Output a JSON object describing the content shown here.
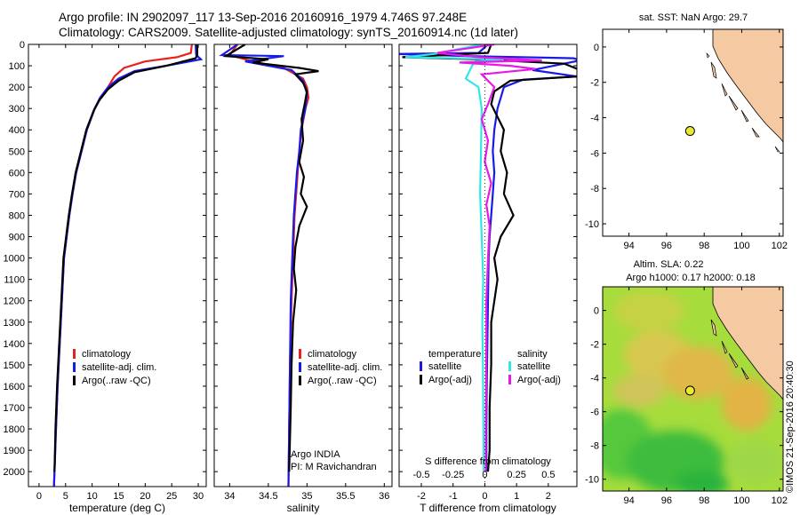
{
  "header": {
    "line1": "Argo profile: IN 2902097_117 13-Sep-2016 20160916_1979 4.746S 97.248E",
    "line2": "Climatology: CARS2009. Satellite-adjusted climatology: synTS_20160914.nc (1d later)"
  },
  "colors": {
    "climatology": "#e8231e",
    "satellite": "#1a1ae6",
    "argo": "#000000",
    "sat_salinity": "#33e6e6",
    "argo_salinity": "#e619e6",
    "land": "#f5c9a2",
    "marker": "#e8e835",
    "sla_green": "#8fd84a",
    "sla_orange": "#e8b540"
  },
  "depth_axis": {
    "ticks": [
      0,
      100,
      200,
      300,
      400,
      500,
      600,
      700,
      800,
      900,
      1000,
      1100,
      1200,
      1300,
      1400,
      1500,
      1600,
      1700,
      1800,
      1900,
      2000
    ]
  },
  "chart_data": [
    {
      "type": "line",
      "id": "temperature",
      "xlabel": "temperature (deg C)",
      "xlim": [
        -2,
        31.5
      ],
      "ylim": [
        2070,
        0
      ],
      "xticks": [
        0,
        5,
        10,
        15,
        20,
        25,
        30
      ],
      "legend": [
        "climatology",
        "satellite-adj. clim.",
        "Argo(..raw -QC)"
      ],
      "series": [
        {
          "name": "climatology",
          "color": "#e8231e",
          "points": [
            [
              28.8,
              0
            ],
            [
              28.6,
              40
            ],
            [
              26,
              60
            ],
            [
              20,
              80
            ],
            [
              16,
              110
            ],
            [
              14.2,
              150
            ],
            [
              13,
              200
            ],
            [
              11.5,
              250
            ],
            [
              10.5,
              300
            ],
            [
              9,
              400
            ],
            [
              8,
              500
            ],
            [
              7,
              600
            ],
            [
              6.3,
              700
            ],
            [
              5.7,
              800
            ],
            [
              5.2,
              900
            ],
            [
              4.7,
              1000
            ],
            [
              4.3,
              1200
            ],
            [
              3.9,
              1400
            ],
            [
              3.5,
              1600
            ],
            [
              3.2,
              1800
            ],
            [
              2.9,
              2000
            ],
            [
              2.8,
              2070
            ]
          ]
        },
        {
          "name": "satellite-adj. clim.",
          "color": "#1a1ae6",
          "points": [
            [
              29.5,
              0
            ],
            [
              29.6,
              50
            ],
            [
              30.5,
              70
            ],
            [
              25,
              95
            ],
            [
              18,
              125
            ],
            [
              15,
              160
            ],
            [
              13,
              200
            ],
            [
              11.5,
              250
            ],
            [
              10.5,
              300
            ],
            [
              9,
              400
            ],
            [
              8,
              500
            ],
            [
              7,
              600
            ],
            [
              6.3,
              700
            ],
            [
              5.7,
              800
            ],
            [
              5.2,
              900
            ],
            [
              4.7,
              1000
            ],
            [
              4.3,
              1200
            ],
            [
              3.9,
              1400
            ],
            [
              3.5,
              1600
            ],
            [
              3.2,
              1800
            ],
            [
              2.9,
              2000
            ],
            [
              2.8,
              2070
            ]
          ]
        },
        {
          "name": "Argo(..raw -QC)",
          "color": "#000000",
          "points": [
            [
              29.8,
              0
            ],
            [
              29.8,
              50
            ],
            [
              29.5,
              65
            ],
            [
              24,
              100
            ],
            [
              18,
              130
            ],
            [
              15,
              170
            ],
            [
              13,
              210
            ],
            [
              11.4,
              260
            ],
            [
              10.3,
              310
            ],
            [
              8.9,
              400
            ],
            [
              7.9,
              500
            ],
            [
              6.9,
              600
            ],
            [
              6.2,
              700
            ],
            [
              5.6,
              800
            ],
            [
              5.1,
              900
            ],
            [
              4.6,
              1000
            ],
            [
              4.2,
              1200
            ],
            [
              3.8,
              1400
            ],
            [
              3.4,
              1600
            ],
            [
              3.1,
              1800
            ],
            [
              2.9,
              2000
            ]
          ]
        }
      ]
    },
    {
      "type": "line",
      "id": "salinity",
      "xlabel": "salinity",
      "xlim": [
        33.8,
        36.1
      ],
      "ylim": [
        2070,
        0
      ],
      "xticks": [
        34,
        34.5,
        35,
        35.5,
        36
      ],
      "legend": [
        "climatology",
        "satellite-adj. clim.",
        "Argo(..raw -QC)"
      ],
      "annotation": [
        "Argo INDIA",
        "PI: M Ravichandran"
      ],
      "series": [
        {
          "name": "climatology",
          "color": "#e8231e",
          "points": [
            [
              34.1,
              0
            ],
            [
              34.0,
              50
            ],
            [
              34.3,
              80
            ],
            [
              34.7,
              110
            ],
            [
              34.95,
              160
            ],
            [
              35.0,
              200
            ],
            [
              35.02,
              250
            ],
            [
              34.98,
              300
            ],
            [
              34.93,
              400
            ],
            [
              34.9,
              500
            ],
            [
              34.88,
              600
            ],
            [
              34.86,
              700
            ],
            [
              34.84,
              800
            ],
            [
              34.82,
              1000
            ],
            [
              34.8,
              1200
            ],
            [
              34.78,
              1500
            ],
            [
              34.77,
              1800
            ],
            [
              34.76,
              2070
            ]
          ]
        },
        {
          "name": "satellite-adj. clim.",
          "color": "#1a1ae6",
          "points": [
            [
              34.1,
              0
            ],
            [
              33.9,
              50
            ],
            [
              34.7,
              55
            ],
            [
              34.2,
              80
            ],
            [
              34.8,
              120
            ],
            [
              34.95,
              170
            ],
            [
              35.0,
              230
            ],
            [
              34.98,
              300
            ],
            [
              34.92,
              400
            ],
            [
              34.9,
              500
            ],
            [
              34.87,
              600
            ],
            [
              34.85,
              700
            ],
            [
              34.83,
              800
            ],
            [
              34.81,
              1000
            ],
            [
              34.79,
              1200
            ],
            [
              34.78,
              1500
            ],
            [
              34.77,
              1800
            ],
            [
              34.76,
              2070
            ]
          ]
        },
        {
          "name": "Argo(..raw -QC)",
          "color": "#000000",
          "points": [
            [
              34.2,
              0
            ],
            [
              33.95,
              55
            ],
            [
              34.5,
              70
            ],
            [
              34.3,
              85
            ],
            [
              34.9,
              110
            ],
            [
              35.15,
              125
            ],
            [
              34.85,
              140
            ],
            [
              34.95,
              180
            ],
            [
              35.0,
              220
            ],
            [
              34.97,
              280
            ],
            [
              34.93,
              350
            ],
            [
              34.95,
              450
            ],
            [
              34.9,
              550
            ],
            [
              34.96,
              620
            ],
            [
              34.92,
              700
            ],
            [
              35.0,
              760
            ],
            [
              34.9,
              850
            ],
            [
              34.85,
              950
            ],
            [
              34.83,
              1050
            ],
            [
              34.86,
              1150
            ],
            [
              34.82,
              1300
            ],
            [
              34.8,
              1500
            ],
            [
              34.79,
              1700
            ],
            [
              34.78,
              1850
            ],
            [
              34.77,
              2000
            ]
          ]
        }
      ]
    },
    {
      "type": "line",
      "id": "difference",
      "xlabel": "T difference from climatology",
      "xlabel2": "S difference from climatology",
      "xlim": [
        -2.7,
        2.9
      ],
      "ylim": [
        2070,
        0
      ],
      "xticks": [
        -2,
        -1,
        0,
        1,
        2
      ],
      "sticks_labels": [
        "-0.5",
        "-0.25",
        "0",
        "0.25",
        "0.5"
      ],
      "legend_left_title": "temperature",
      "legend_right_title": "salinity",
      "legend": [
        "satellite",
        "Argo(-adj)",
        "satellite",
        "Argo(-adj)"
      ],
      "series": [
        {
          "name": "T satellite",
          "color": "#1a1ae6",
          "points": [
            [
              0.1,
              0
            ],
            [
              -0.2,
              40
            ],
            [
              -2.8,
              45
            ],
            [
              -0.5,
              55
            ],
            [
              2.8,
              65
            ],
            [
              3.0,
              75
            ],
            [
              1.5,
              120
            ],
            [
              2.9,
              150
            ],
            [
              1.2,
              165
            ],
            [
              0.6,
              200
            ],
            [
              0.4,
              300
            ],
            [
              0.3,
              400
            ],
            [
              0.25,
              500
            ],
            [
              0.3,
              600
            ],
            [
              0.25,
              700
            ],
            [
              0.2,
              800
            ],
            [
              0.15,
              900
            ],
            [
              0.12,
              1000
            ],
            [
              0.1,
              1200
            ],
            [
              0.08,
              1400
            ],
            [
              0.06,
              1600
            ],
            [
              0.05,
              1800
            ],
            [
              0.05,
              2000
            ]
          ]
        },
        {
          "name": "T Argo(-adj)",
          "color": "#000000",
          "points": [
            [
              0.2,
              0
            ],
            [
              0.1,
              40
            ],
            [
              -2.6,
              60
            ],
            [
              -0.2,
              70
            ],
            [
              2.5,
              90
            ],
            [
              3.0,
              120
            ],
            [
              2.9,
              150
            ],
            [
              0.8,
              170
            ],
            [
              0.3,
              220
            ],
            [
              0.2,
              280
            ],
            [
              0.6,
              400
            ],
            [
              0.5,
              500
            ],
            [
              0.7,
              600
            ],
            [
              0.6,
              700
            ],
            [
              0.9,
              800
            ],
            [
              0.5,
              900
            ],
            [
              0.3,
              1000
            ],
            [
              0.4,
              1100
            ],
            [
              0.2,
              1300
            ],
            [
              0.2,
              1500
            ],
            [
              0.15,
              1700
            ],
            [
              0.15,
              1900
            ],
            [
              0.1,
              2000
            ]
          ]
        },
        {
          "name": "S satellite",
          "color": "#33e6e6",
          "points": [
            [
              -0.1,
              0
            ],
            [
              -1.6,
              45
            ],
            [
              -2.5,
              60
            ],
            [
              0.6,
              70
            ],
            [
              -0.3,
              80
            ],
            [
              -0.4,
              100
            ],
            [
              -0.6,
              160
            ],
            [
              -0.2,
              200
            ],
            [
              -0.1,
              300
            ],
            [
              -0.12,
              500
            ],
            [
              -0.15,
              700
            ],
            [
              -0.1,
              900
            ],
            [
              -0.05,
              1100
            ],
            [
              -0.08,
              1300
            ],
            [
              -0.06,
              1500
            ],
            [
              -0.05,
              1700
            ],
            [
              -0.04,
              1900
            ],
            [
              -0.04,
              2000
            ]
          ]
        },
        {
          "name": "S Argo(-adj)",
          "color": "#e619e6",
          "points": [
            [
              0.3,
              0
            ],
            [
              -1.5,
              40
            ],
            [
              -0.2,
              60
            ],
            [
              1.8,
              75
            ],
            [
              -0.8,
              85
            ],
            [
              0.8,
              100
            ],
            [
              1.6,
              115
            ],
            [
              -0.1,
              140
            ],
            [
              0.3,
              200
            ],
            [
              0.1,
              280
            ],
            [
              -0.1,
              350
            ],
            [
              0.1,
              450
            ],
            [
              0.0,
              550
            ],
            [
              0.2,
              650
            ],
            [
              0.05,
              750
            ],
            [
              0.15,
              850
            ],
            [
              0.1,
              1000
            ],
            [
              0.05,
              1200
            ],
            [
              0.05,
              1400
            ],
            [
              0.04,
              1600
            ],
            [
              0.03,
              1800
            ],
            [
              0.03,
              2000
            ]
          ]
        }
      ]
    },
    {
      "type": "scatter",
      "id": "sst_map",
      "title": "sat. SST: NaN  Argo: 29.7",
      "xlim": [
        92.6,
        102.2
      ],
      "ylim": [
        -10.7,
        1.0
      ],
      "xticks": [
        94,
        96,
        98,
        100,
        102
      ],
      "yticks": [
        0,
        -2,
        -4,
        -6,
        -8,
        -10
      ],
      "points": [
        [
          97.25,
          -4.75
        ]
      ]
    },
    {
      "type": "heatmap",
      "id": "sla_map",
      "title": "Altim. SLA: 0.22",
      "subtitle": "Argo h1000: 0.17 h2000: 0.18",
      "xlim": [
        92.6,
        102.2
      ],
      "ylim": [
        -10.7,
        1.4
      ],
      "xticks": [
        94,
        96,
        98,
        100,
        102
      ],
      "yticks": [
        0,
        -2,
        -4,
        -6,
        -8,
        -10
      ],
      "points": [
        [
          97.25,
          -4.75
        ]
      ]
    }
  ],
  "footer": {
    "credit": "©IMOS 21-Sep-2016 20:40:30"
  }
}
